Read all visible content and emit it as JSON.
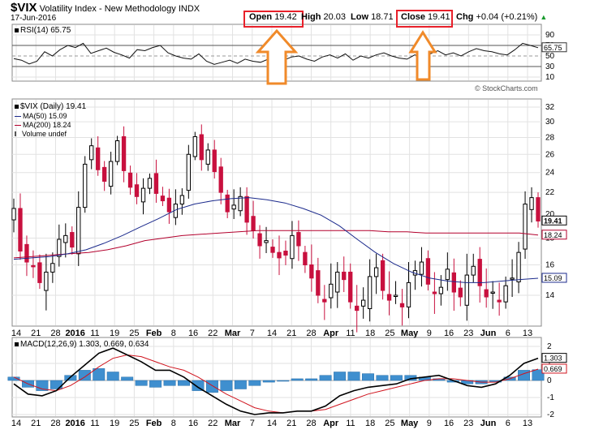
{
  "header": {
    "symbol": "$VIX",
    "name": "Volatility Index - New Methodology",
    "exchange": "INDX",
    "date": "17-Jun-2016",
    "open_label": "Open",
    "open": "19.42",
    "high_label": "High",
    "high": "20.03",
    "low_label": "Low",
    "low": "18.71",
    "close_label": "Close",
    "close": "19.41",
    "chg_label": "Chg",
    "chg": "+0.04 (+0.21%)",
    "watermark": "© StockCharts.com"
  },
  "rsi": {
    "label": "RSI(14) 65.75",
    "value": "65.75",
    "ticks": [
      "90",
      "70",
      "50",
      "30",
      "10"
    ],
    "values": [
      45,
      42,
      35,
      40,
      58,
      50,
      62,
      70,
      66,
      74,
      55,
      60,
      65,
      57,
      52,
      46,
      62,
      60,
      66,
      70,
      56,
      50,
      46,
      44,
      54,
      40,
      34,
      38,
      42,
      36,
      44,
      40,
      38,
      44,
      46,
      42,
      48,
      50,
      44,
      40,
      48,
      52,
      46,
      54,
      42,
      50,
      46,
      52,
      56,
      50,
      46,
      44,
      52,
      48,
      54,
      60,
      52,
      56,
      50,
      58,
      64,
      60,
      58,
      54,
      52,
      62,
      74,
      70,
      65.75
    ]
  },
  "price": {
    "legend_main": "$VIX (Daily) 19.41",
    "legend_ma50": "MA(50) 15.09",
    "legend_ma200": "MA(200) 18.24",
    "legend_vol": "Volume undef",
    "ma50_value": "15.09",
    "ma200_value": "18.24",
    "last_value": "19.41",
    "ticks": [
      "32",
      "30",
      "28",
      "26",
      "24",
      "22",
      "20",
      "18",
      "16",
      "14"
    ]
  },
  "macd": {
    "label": "MACD(12,26,9) 1.303, 0.669, 0.634",
    "macd_value": "1.303",
    "signal_value": "0.669",
    "ticks": [
      "2",
      "1",
      "0",
      "-1",
      "-2"
    ]
  },
  "xaxis": {
    "labels": [
      "14",
      "21",
      "28",
      "2016",
      "11",
      "19",
      "25",
      "Feb",
      "8",
      "16",
      "22",
      "Mar",
      "7",
      "14",
      "21",
      "28",
      "Apr",
      "11",
      "18",
      "25",
      "May",
      "9",
      "16",
      "23",
      "Jun",
      "6",
      "13"
    ]
  },
  "chart_data": {
    "type": "candlestick",
    "title": "$VIX Volatility Index - New Methodology INDX",
    "x_range": [
      "2015-12-14",
      "2016-06-17"
    ],
    "ylim": [
      12,
      33
    ],
    "close": [
      20.5,
      17.0,
      16.2,
      15.9,
      14.8,
      15.5,
      16.1,
      17.9,
      18.2,
      17.3,
      20.6,
      24.9,
      27.0,
      24.3,
      23.1,
      25.2,
      27.6,
      24.2,
      22.5,
      21.6,
      22.4,
      23.4,
      21.9,
      21.2,
      20.2,
      20.9,
      21.7,
      26.0,
      28.1,
      25.4,
      26.5,
      24.1,
      22.0,
      20.2,
      20.8,
      21.6,
      19.3,
      18.6,
      17.4,
      17.8,
      16.9,
      16.5,
      16.7,
      18.2,
      17.4,
      16.0,
      15.1,
      14.0,
      13.6,
      14.7,
      15.5,
      15.0,
      13.6,
      13.1,
      13.7,
      15.2,
      15.8,
      14.3,
      13.7,
      14.0,
      13.3,
      14.8,
      15.6,
      16.2,
      14.7,
      14.1,
      14.5,
      15.7,
      14.2,
      13.9,
      15.3,
      15.9,
      14.6,
      13.9,
      14.2,
      13.6,
      14.6,
      15.1,
      16.9,
      20.9,
      21.5,
      19.4
    ],
    "ma50": [
      16.4,
      16.5,
      16.6,
      16.8,
      17.1,
      17.6,
      18.2,
      18.9,
      19.6,
      20.4,
      20.9,
      21.2,
      21.4,
      21.5,
      21.3,
      21.0,
      20.5,
      19.9,
      19.0,
      17.9,
      16.9,
      16.1,
      15.5,
      15.1,
      14.9,
      14.8,
      14.8,
      14.9,
      15.0,
      15.09
    ],
    "ma200": [
      16.5,
      16.6,
      16.7,
      16.8,
      16.9,
      17.1,
      17.4,
      17.8,
      18.0,
      18.2,
      18.3,
      18.4,
      18.5,
      18.6,
      18.6,
      18.6,
      18.6,
      18.6,
      18.6,
      18.6,
      18.5,
      18.5,
      18.4,
      18.4,
      18.4,
      18.4,
      18.4,
      18.4,
      18.24
    ],
    "macd_line": [
      -0.2,
      -0.8,
      -0.9,
      -0.6,
      0.2,
      0.9,
      1.6,
      1.9,
      1.5,
      1.1,
      0.6,
      0.6,
      0.2,
      -0.4,
      -0.9,
      -1.4,
      -1.8,
      -2.0,
      -1.9,
      -1.9,
      -1.8,
      -1.8,
      -1.5,
      -0.9,
      -0.6,
      -0.4,
      -0.3,
      -0.2,
      0.1,
      0.2,
      0.3,
      0.0,
      -0.3,
      -0.4,
      -0.2,
      0.3,
      1.0,
      1.303
    ],
    "signal_line": [
      0.2,
      -0.2,
      -0.5,
      -0.6,
      -0.3,
      0.2,
      0.8,
      1.3,
      1.5,
      1.4,
      1.1,
      0.8,
      0.6,
      0.2,
      -0.3,
      -0.8,
      -1.2,
      -1.6,
      -1.8,
      -1.9,
      -1.8,
      -1.8,
      -1.7,
      -1.4,
      -1.1,
      -0.8,
      -0.6,
      -0.4,
      -0.2,
      0.0,
      0.1,
      0.1,
      0.0,
      -0.1,
      -0.1,
      0.1,
      0.4,
      0.669
    ],
    "histogram": [
      0.2,
      -0.4,
      -0.6,
      -0.5,
      0.3,
      0.6,
      0.7,
      0.5,
      0.2,
      -0.3,
      -0.4,
      -0.3,
      -0.3,
      -0.6,
      -0.7,
      -0.6,
      -0.5,
      -0.3,
      -0.1,
      0.0,
      0.1,
      0.1,
      0.3,
      0.5,
      0.5,
      0.4,
      0.3,
      0.3,
      0.3,
      0.2,
      0.1,
      -0.1,
      -0.2,
      -0.2,
      -0.1,
      0.2,
      0.6,
      0.634
    ],
    "ma_color": "#1b2a8c",
    "ma200_color": "#b3002d",
    "up_color": "#000000",
    "down_color": "#c8103e",
    "hist_color": "#3f8fcf"
  }
}
